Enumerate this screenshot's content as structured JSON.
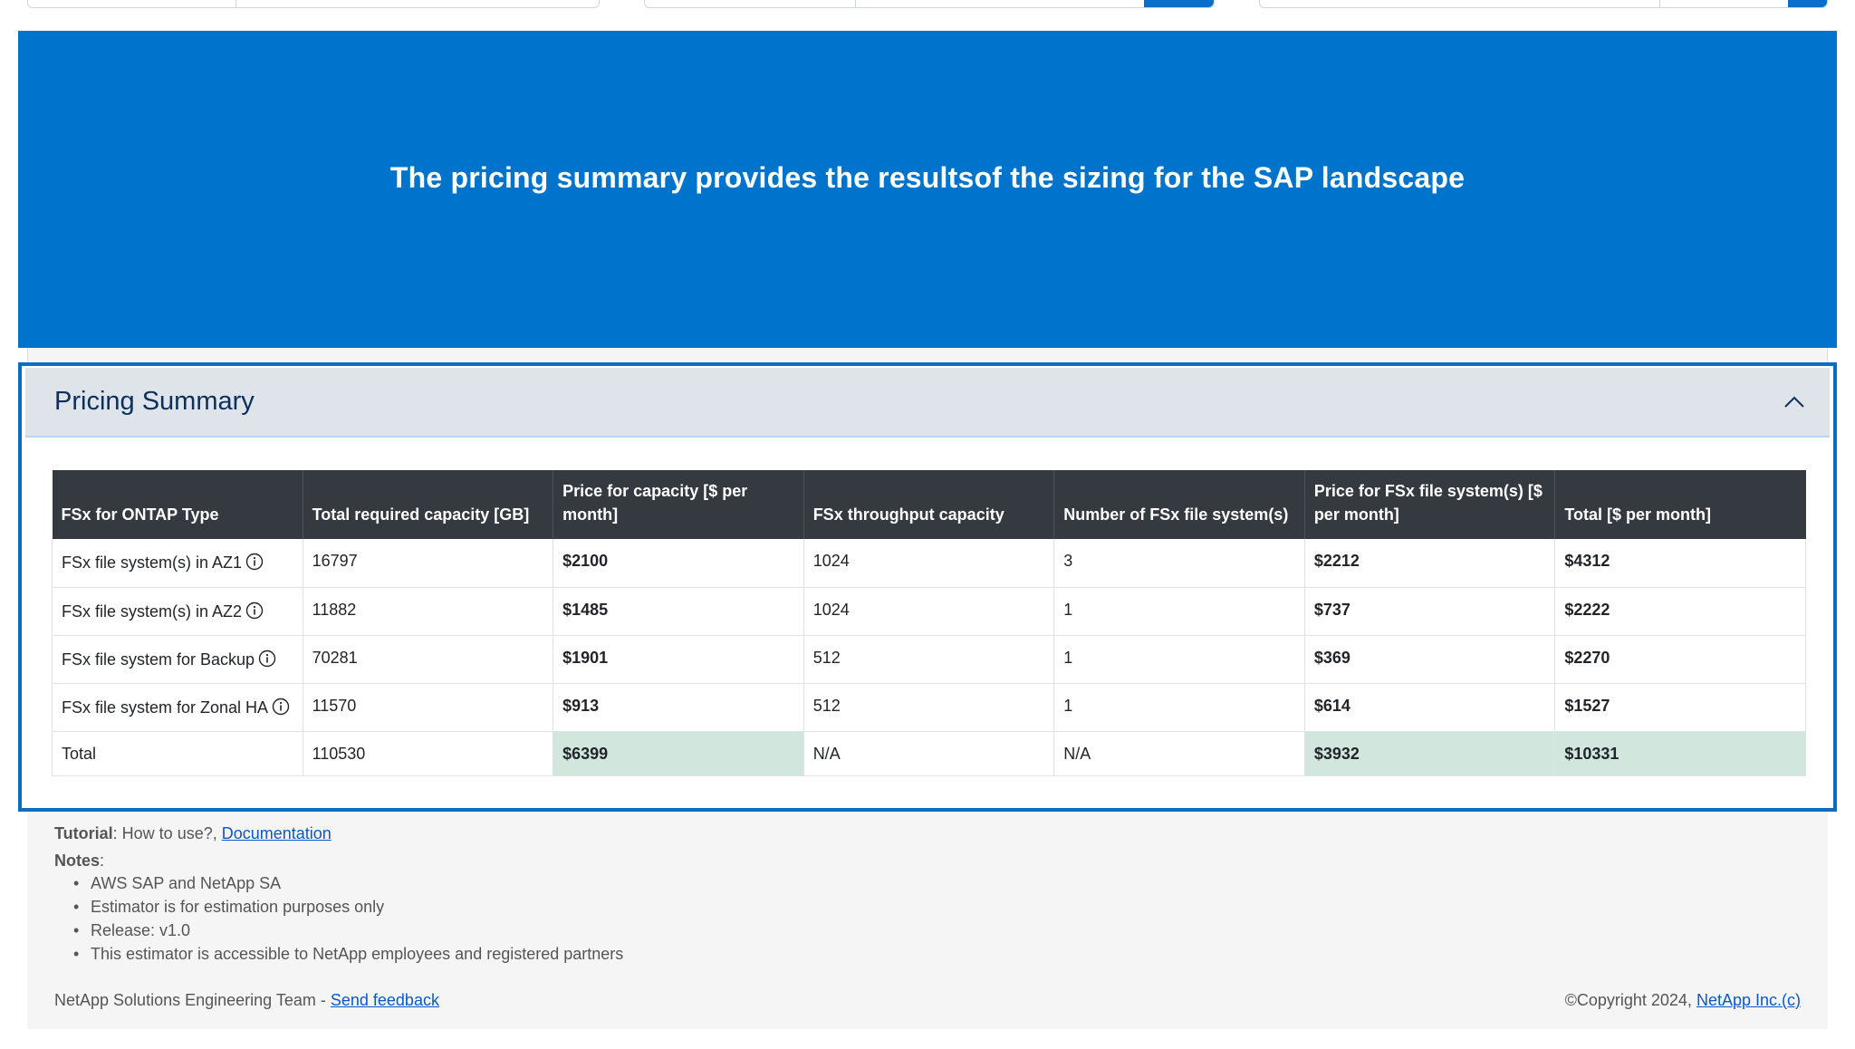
{
  "hero": {
    "text": "The pricing summary provides the resultsof the sizing for the SAP landscape"
  },
  "accordion": {
    "title": "Pricing Summary"
  },
  "table": {
    "headers": [
      "FSx for ONTAP Type",
      "Total required capacity [GB]",
      "Price for capacity [$ per month]",
      "FSx throughput capacity",
      "Number of FSx file system(s)",
      "Price for FSx file system(s) [$ per month]",
      "Total [$ per month]"
    ],
    "rows": [
      [
        "FSx file system(s) in AZ1",
        "16797",
        "$2100",
        "1024",
        "3",
        "$2212",
        "$4312"
      ],
      [
        "FSx file system(s) in AZ2",
        "11882",
        "$1485",
        "1024",
        "1",
        "$737",
        "$2222"
      ],
      [
        "FSx file system for Backup",
        "70281",
        "$1901",
        "512",
        "1",
        "$369",
        "$2270"
      ],
      [
        "FSx file system for Zonal HA",
        "11570",
        "$913",
        "512",
        "1",
        "$614",
        "$1527"
      ],
      [
        "Total",
        "110530",
        "$6399",
        "N/A",
        "N/A",
        "$3932",
        "$10331"
      ]
    ]
  },
  "footer": {
    "tutorial_label": "Tutorial",
    "tutorial_text": ": How to use?, ",
    "documentation_link": "Documentation",
    "notes_label": "Notes",
    "notes_colon": ":",
    "notes": [
      "AWS SAP and NetApp SA",
      "Estimator is for estimation purposes only",
      "Release: v1.0",
      "This estimator is accessible to NetApp employees and registered partners"
    ],
    "team_text": "NetApp Solutions Engineering Team - ",
    "feedback_link": "Send feedback",
    "copyright_text": "©Copyright 2024, ",
    "company_link": "NetApp Inc.(c)"
  },
  "colors": {
    "hero_bg": "#0074cc",
    "accent_border": "#0a6fc2",
    "table_header_bg": "#343a40",
    "highlight_cell": "#d1e7dd",
    "link": "#0a58ca"
  }
}
